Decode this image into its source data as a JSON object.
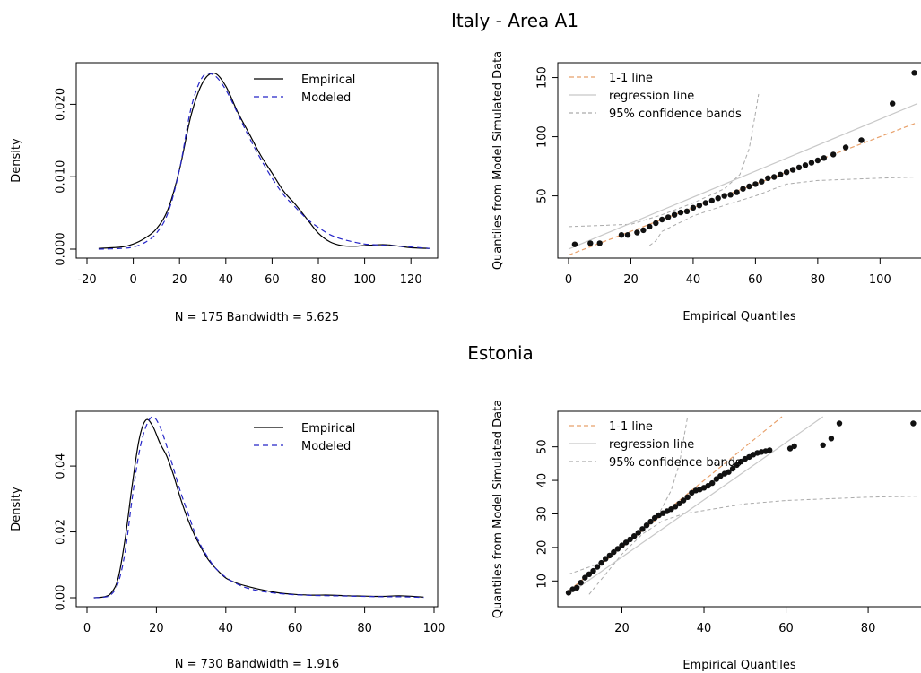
{
  "figure": {
    "titles": [
      "Italy - Area A1",
      "Estonia"
    ]
  },
  "chart_data": [
    {
      "type": "line",
      "subplot": "density",
      "group": "Italy - Area A1",
      "xlabel": "N = 175   Bandwidth = 5.625",
      "ylabel": "Density",
      "xlim": [
        -20,
        130
      ],
      "ylim": [
        0,
        0.025
      ],
      "xticks": [
        -20,
        0,
        20,
        40,
        60,
        80,
        100,
        120
      ],
      "yticks": [
        0.0,
        0.01,
        0.02
      ],
      "ytick_labels": [
        "0.000",
        "0.010",
        "0.020"
      ],
      "legend": {
        "position": "top-right",
        "entries": [
          "Empirical",
          "Modeled"
        ]
      },
      "series": [
        {
          "name": "Empirical",
          "color": "#000000",
          "dash": "solid",
          "x": [
            -15,
            -5,
            0,
            5,
            10,
            15,
            20,
            25,
            30,
            35,
            40,
            45,
            50,
            55,
            60,
            65,
            70,
            75,
            80,
            85,
            90,
            95,
            100,
            105,
            110,
            115,
            120,
            128
          ],
          "y": [
            0.0001,
            0.0003,
            0.0007,
            0.0015,
            0.0028,
            0.0055,
            0.011,
            0.0185,
            0.023,
            0.0243,
            0.0225,
            0.019,
            0.016,
            0.013,
            0.0105,
            0.008,
            0.0062,
            0.0042,
            0.0022,
            0.001,
            0.0005,
            0.0004,
            0.0005,
            0.0006,
            0.0006,
            0.0004,
            0.0002,
            0.0001
          ]
        },
        {
          "name": "Modeled",
          "color": "#2525c8",
          "dash": "dashed",
          "x": [
            -15,
            -5,
            0,
            5,
            10,
            15,
            20,
            25,
            30,
            35,
            40,
            45,
            50,
            55,
            60,
            65,
            70,
            75,
            80,
            85,
            90,
            95,
            100,
            105,
            110,
            115,
            120,
            128
          ],
          "y": [
            0.0,
            0.0001,
            0.0003,
            0.0009,
            0.0022,
            0.005,
            0.011,
            0.0195,
            0.0238,
            0.024,
            0.022,
            0.0188,
            0.0155,
            0.0125,
            0.0098,
            0.0075,
            0.0058,
            0.0042,
            0.003,
            0.002,
            0.0014,
            0.001,
            0.0007,
            0.0006,
            0.0005,
            0.0004,
            0.0003,
            0.0001
          ]
        }
      ]
    },
    {
      "type": "scatter",
      "subplot": "qq",
      "group": "Italy - Area A1",
      "xlabel": "Empirical Quantiles",
      "ylabel": "Quantiles from Model Simulated Data",
      "xlim": [
        0,
        112
      ],
      "ylim": [
        5,
        158
      ],
      "xticks": [
        0,
        20,
        40,
        60,
        80,
        100
      ],
      "yticks": [
        50,
        100,
        150
      ],
      "legend": {
        "position": "top-left",
        "entries": [
          "1-1 line",
          "regression line",
          "95% confidence bands"
        ]
      },
      "points": {
        "x": [
          2,
          7,
          10,
          17,
          19,
          22,
          24,
          26,
          28,
          30,
          32,
          34,
          36,
          38,
          40,
          42,
          44,
          46,
          48,
          50,
          52,
          54,
          56,
          58,
          60,
          62,
          64,
          66,
          68,
          70,
          72,
          74,
          76,
          78,
          80,
          82,
          85,
          89,
          94,
          104,
          111
        ],
        "y": [
          9,
          10,
          10,
          17,
          17,
          19,
          21,
          24,
          27,
          30,
          32,
          34,
          36,
          37,
          40,
          42,
          44,
          46,
          48,
          50,
          51,
          53,
          56,
          58,
          60,
          62,
          65,
          66,
          68,
          70,
          72,
          74,
          76,
          78,
          80,
          82,
          85,
          91,
          97,
          128,
          154
        ]
      },
      "one_to_one": [
        [
          0,
          0
        ],
        [
          112,
          112
        ]
      ],
      "regression_line": [
        [
          0,
          5
        ],
        [
          112,
          128
        ]
      ],
      "confidence_bands": {
        "upper": [
          [
            0,
            24
          ],
          [
            20,
            26
          ],
          [
            30,
            34
          ],
          [
            40,
            44
          ],
          [
            50,
            56
          ],
          [
            55,
            68
          ],
          [
            58,
            90
          ],
          [
            60,
            120
          ],
          [
            61,
            136
          ]
        ],
        "lower": [
          [
            26,
            8
          ],
          [
            28,
            12
          ],
          [
            30,
            20
          ],
          [
            40,
            33
          ],
          [
            50,
            42
          ],
          [
            60,
            50
          ],
          [
            70,
            60
          ],
          [
            80,
            63
          ],
          [
            90,
            64
          ],
          [
            100,
            65
          ],
          [
            112,
            66
          ]
        ]
      }
    },
    {
      "type": "line",
      "subplot": "density",
      "group": "Estonia",
      "xlabel": "N = 730   Bandwidth = 1.916",
      "ylabel": "Density",
      "xlim": [
        0,
        100
      ],
      "ylim": [
        0,
        0.055
      ],
      "xticks": [
        0,
        20,
        40,
        60,
        80,
        100
      ],
      "yticks": [
        0.0,
        0.02,
        0.04
      ],
      "ytick_labels": [
        "0.00",
        "0.02",
        "0.04"
      ],
      "legend": {
        "position": "top-right",
        "entries": [
          "Empirical",
          "Modeled"
        ]
      },
      "series": [
        {
          "name": "Empirical",
          "color": "#000000",
          "dash": "solid",
          "x": [
            2,
            5,
            7,
            9,
            11,
            13,
            15,
            17,
            19,
            21,
            23,
            25,
            27,
            29,
            31,
            33,
            35,
            37,
            40,
            43,
            46,
            50,
            55,
            60,
            65,
            70,
            75,
            80,
            85,
            90,
            97
          ],
          "y": [
            0.0,
            0.0003,
            0.0015,
            0.006,
            0.018,
            0.034,
            0.048,
            0.054,
            0.052,
            0.047,
            0.043,
            0.037,
            0.03,
            0.024,
            0.019,
            0.015,
            0.0115,
            0.009,
            0.006,
            0.0045,
            0.0035,
            0.0025,
            0.0015,
            0.001,
            0.0008,
            0.0008,
            0.0006,
            0.0005,
            0.0004,
            0.0006,
            0.0002
          ]
        },
        {
          "name": "Modeled",
          "color": "#2525c8",
          "dash": "dashed",
          "x": [
            2,
            5,
            7,
            9,
            11,
            13,
            15,
            17,
            19,
            21,
            23,
            25,
            27,
            29,
            31,
            33,
            35,
            37,
            40,
            43,
            46,
            50,
            55,
            60,
            65,
            70,
            75,
            80,
            85,
            90,
            97
          ],
          "y": [
            0.0,
            0.0002,
            0.001,
            0.0045,
            0.014,
            0.03,
            0.044,
            0.052,
            0.055,
            0.052,
            0.046,
            0.039,
            0.032,
            0.026,
            0.02,
            0.0155,
            0.012,
            0.009,
            0.0062,
            0.0043,
            0.003,
            0.002,
            0.0013,
            0.0009,
            0.0007,
            0.0006,
            0.0005,
            0.0004,
            0.0003,
            0.0003,
            0.0001
          ]
        }
      ]
    },
    {
      "type": "scatter",
      "subplot": "qq",
      "group": "Estonia",
      "xlabel": "Empirical Quantiles",
      "ylabel": "Quantiles from Model Simulated Data",
      "xlim": [
        7,
        92
      ],
      "ylim": [
        5,
        59
      ],
      "xticks": [
        20,
        40,
        60,
        80
      ],
      "yticks": [
        10,
        20,
        30,
        40,
        50
      ],
      "legend": {
        "position": "top-left",
        "entries": [
          "1-1 line",
          "regression line",
          "95% confidence bands"
        ]
      },
      "points": {
        "x": [
          7,
          8,
          9,
          10,
          11,
          12,
          13,
          14,
          15,
          16,
          17,
          18,
          19,
          20,
          21,
          22,
          23,
          24,
          25,
          26,
          27,
          28,
          29,
          30,
          31,
          32,
          33,
          34,
          35,
          36,
          37,
          38,
          39,
          40,
          41,
          42,
          43,
          44,
          45,
          46,
          47,
          48,
          49,
          50,
          51,
          52,
          53,
          54,
          55,
          56,
          61,
          62,
          69,
          71,
          73,
          91
        ],
        "y": [
          6.5,
          7.5,
          8,
          9.5,
          11,
          12,
          13,
          14.2,
          15.4,
          16.6,
          17.6,
          18.6,
          19.6,
          20.6,
          21.5,
          22.4,
          23.4,
          24.4,
          25.5,
          26.6,
          27.7,
          28.8,
          29.6,
          30.2,
          30.8,
          31.4,
          32.2,
          33.1,
          34,
          35,
          36.3,
          37,
          37.3,
          37.8,
          38.4,
          39.2,
          40.4,
          41.3,
          42,
          42.5,
          43.5,
          44.6,
          45.6,
          46.4,
          47,
          47.7,
          48.2,
          48.5,
          48.7,
          49,
          49.5,
          50.2,
          50.5,
          52.5,
          57,
          57
        ]
      },
      "one_to_one": [
        [
          7,
          7
        ],
        [
          59,
          59
        ]
      ],
      "regression_line": [
        [
          7,
          6
        ],
        [
          69,
          59
        ]
      ],
      "confidence_bands": {
        "upper": [
          [
            7,
            12
          ],
          [
            14,
            15
          ],
          [
            20,
            20
          ],
          [
            25,
            25
          ],
          [
            29,
            30
          ],
          [
            32,
            37
          ],
          [
            34,
            45
          ],
          [
            35,
            52
          ],
          [
            36,
            59
          ]
        ],
        "lower": [
          [
            12,
            6
          ],
          [
            16,
            12
          ],
          [
            20,
            18
          ],
          [
            25,
            24
          ],
          [
            30,
            28
          ],
          [
            35,
            30
          ],
          [
            40,
            31
          ],
          [
            50,
            33
          ],
          [
            60,
            34
          ],
          [
            70,
            34.5
          ],
          [
            80,
            35
          ],
          [
            92,
            35.3
          ]
        ]
      }
    }
  ]
}
